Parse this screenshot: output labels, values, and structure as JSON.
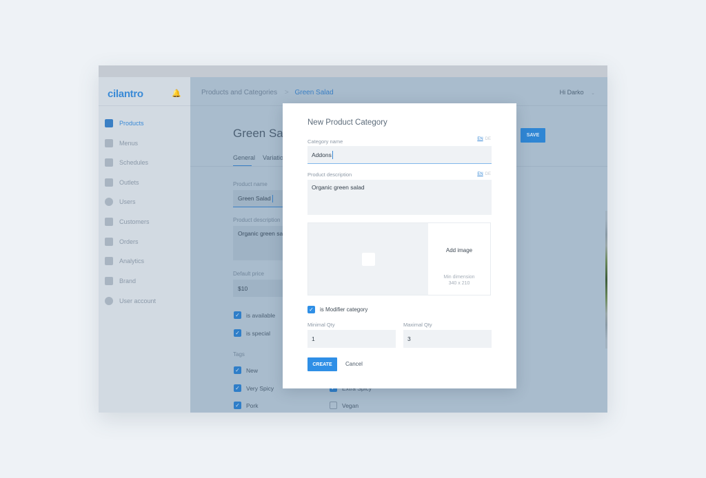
{
  "app": {
    "logo": "cilantro"
  },
  "sidebar": {
    "items": [
      {
        "label": "Products",
        "icon": "basket-icon",
        "active": true
      },
      {
        "label": "Menus",
        "icon": "book-icon"
      },
      {
        "label": "Schedules",
        "icon": "calendar-icon"
      },
      {
        "label": "Outlets",
        "icon": "store-icon"
      },
      {
        "label": "Users",
        "icon": "face-icon"
      },
      {
        "label": "Customers",
        "icon": "people-icon"
      },
      {
        "label": "Orders",
        "icon": "clipboard-check-icon"
      },
      {
        "label": "Analytics",
        "icon": "bar-chart-icon"
      },
      {
        "label": "Brand",
        "icon": "building-icon"
      },
      {
        "label": "User account",
        "icon": "gear-icon"
      }
    ]
  },
  "header": {
    "breadcrumb": [
      "Products and Categories",
      "Green Salad"
    ],
    "separator": ">",
    "user": "Hi Darko"
  },
  "page": {
    "title": "Green Salad",
    "tabs": [
      "General",
      "Variations"
    ],
    "save": "SAVE",
    "product_name_label": "Product name",
    "product_name": "Green Salad",
    "description_label": "Product description",
    "description": "Organic green salad",
    "price_label": "Default price",
    "price": "$10",
    "is_available": "is available",
    "is_special": "is special",
    "tags_label": "Tags",
    "tags": [
      {
        "label": "New",
        "checked": true
      },
      {
        "label": "Very Spicy",
        "checked": true
      },
      {
        "label": "Pork",
        "checked": true
      },
      {
        "label": "Extra Spicy",
        "checked": true
      },
      {
        "label": "Vegan",
        "checked": false
      }
    ]
  },
  "modal": {
    "title": "New Product Category",
    "category_name_label": "Category name",
    "category_name": "Addons",
    "description_label": "Product description",
    "description": "Organic green salad",
    "lang_en": "EN",
    "lang_de": "DE",
    "add_image": "Add image",
    "min_dimension": "Min dimension",
    "dimension_value": "340 x 210",
    "modifier_label": "is Modifier category",
    "modifier_checked": true,
    "min_qty_label": "Minimal Qty",
    "min_qty": "1",
    "max_qty_label": "Maximal Qty",
    "max_qty": "3",
    "create": "CREATE",
    "cancel": "Cancel"
  },
  "colors": {
    "accent": "#2f8fe6",
    "brand": "#3a8ad6"
  }
}
